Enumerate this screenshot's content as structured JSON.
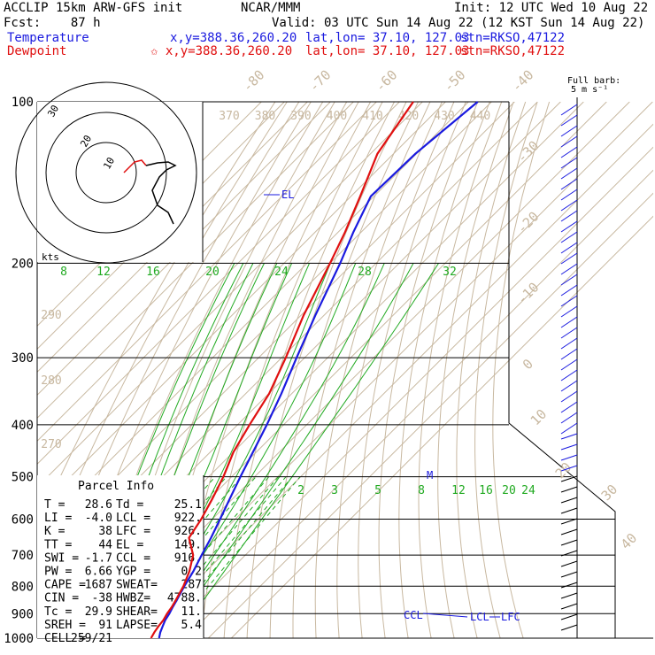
{
  "header": {
    "model": "ACCLIP 15km ARW-GFS init",
    "forecast": "Fcst:    87 h",
    "center": "NCAR/MMM",
    "init": "Init: 12 UTC Wed 10 Aug 22",
    "valid": "Valid: 03 UTC Sun 14 Aug 22 (12 KST Sun 14 Aug 22)",
    "temperature_label": "Temperature",
    "dewpoint_label": "Dewpoint",
    "temp_xy": "x,y=388.36,260.20",
    "temp_latlon": "lat,lon= 37.10, 127.03",
    "temp_stn": "stn=RKSO,47122",
    "dew_xy": "✩ x,y=388.36,260.20",
    "dew_latlon": "lat,lon= 37.10, 127.03",
    "dew_stn": "stn=RKSO,47122"
  },
  "colors": {
    "temperature": "#1a1adf",
    "dewpoint": "#e01010",
    "isotherm": "#c8b8a0",
    "mixing_ratio": "#22aa22",
    "grid": "#000000"
  },
  "barb_legend": [
    "Full barb:",
    "5 m s⁻¹"
  ],
  "hodograph": {
    "ring_labels": [
      "30",
      "20",
      "10"
    ],
    "units": "kts"
  },
  "annotations": {
    "el": "EL",
    "ccl": "CCL",
    "lcl": "LCL",
    "lfc": "LFC",
    "mark": "M"
  },
  "parcel_info": {
    "title": "Parcel Info",
    "rows": [
      {
        "a": "T  =",
        "av": "28.6",
        "b": "Td =",
        "bv": "25.1"
      },
      {
        "a": "LI =",
        "av": "-4.0",
        "b": "LCL =",
        "bv": "922."
      },
      {
        "a": "K  =",
        "av": "38",
        "b": "LFC =",
        "bv": "926."
      },
      {
        "a": "TT =",
        "av": "44",
        "b": "EL  =",
        "bv": "149."
      },
      {
        "a": "SWI =",
        "av": "-1.7",
        "b": "CCL =",
        "bv": "916."
      },
      {
        "a": "PW =",
        "av": "6.66",
        "b": "YGP =",
        "bv": "0.2"
      },
      {
        "a": "CAPE =",
        "av": "1687",
        "b": "SWEAT=",
        "bv": "287"
      },
      {
        "a": "CIN =",
        "av": "-38",
        "b": "HWBZ=",
        "bv": "4788."
      },
      {
        "a": "Tc =",
        "av": "29.9",
        "b": "SHEAR=",
        "bv": "11."
      },
      {
        "a": "SREH =",
        "av": "91",
        "b": "LAPSE=",
        "bv": "5.4"
      },
      {
        "a": "CELL =",
        "av": "259/21",
        "b": "",
        "bv": ""
      }
    ]
  },
  "chart_data": {
    "type": "line",
    "subtype": "skew-T log-P",
    "y_axis": {
      "scale": "log",
      "ticks": [
        100,
        200,
        300,
        400,
        500,
        600,
        700,
        800,
        900,
        1000
      ]
    },
    "isotherm_labels": [
      "-80",
      "-70",
      "-60",
      "-50",
      "-40",
      "-30",
      "-20",
      "-10",
      "0",
      "10",
      "20",
      "30",
      "40"
    ],
    "theta_labels_top": [
      "370",
      "380",
      "390",
      "400",
      "410",
      "420",
      "430",
      "440"
    ],
    "theta_labels_left": [
      "290",
      "280",
      "270"
    ],
    "theta_e_labels": [
      "8",
      "12",
      "16",
      "20",
      "24",
      "28",
      "32"
    ],
    "mixing_ratio_labels": [
      "2",
      "3",
      "5",
      "8",
      "12",
      "16",
      "20",
      "24"
    ],
    "series": [
      {
        "name": "Temperature",
        "color": "#1a1adf",
        "p": [
          1000,
          975,
          950,
          925,
          900,
          875,
          850,
          800,
          750,
          700,
          650,
          600,
          550,
          500,
          450,
          400,
          350,
          300,
          250,
          200,
          175,
          150,
          125,
          100
        ],
        "t": [
          28.6,
          26.6,
          25.0,
          23.4,
          22.4,
          21.0,
          19.8,
          17.0,
          14.4,
          11.0,
          7.6,
          3.4,
          -1.2,
          -6.2,
          -11.4,
          -17.3,
          -24.5,
          -33.5,
          -43.8,
          -55.6,
          -63.4,
          -71.4,
          -70.5,
          -66.0
        ]
      },
      {
        "name": "Dewpoint",
        "color": "#e01010",
        "p": [
          1000,
          975,
          950,
          925,
          900,
          875,
          850,
          800,
          750,
          700,
          650,
          600,
          550,
          500,
          450,
          400,
          350,
          300,
          250,
          200,
          175,
          150,
          125,
          100
        ],
        "t": [
          25.1,
          24.0,
          23.2,
          22.6,
          21.4,
          20.6,
          19.4,
          16.6,
          12.7,
          7.3,
          -2.0,
          -4.8,
          -8.8,
          -13.6,
          -19.9,
          -24.8,
          -29.8,
          -38.2,
          -48.9,
          -60.0,
          -67.0,
          -76.0,
          -87.0,
          -94.0
        ]
      }
    ]
  }
}
